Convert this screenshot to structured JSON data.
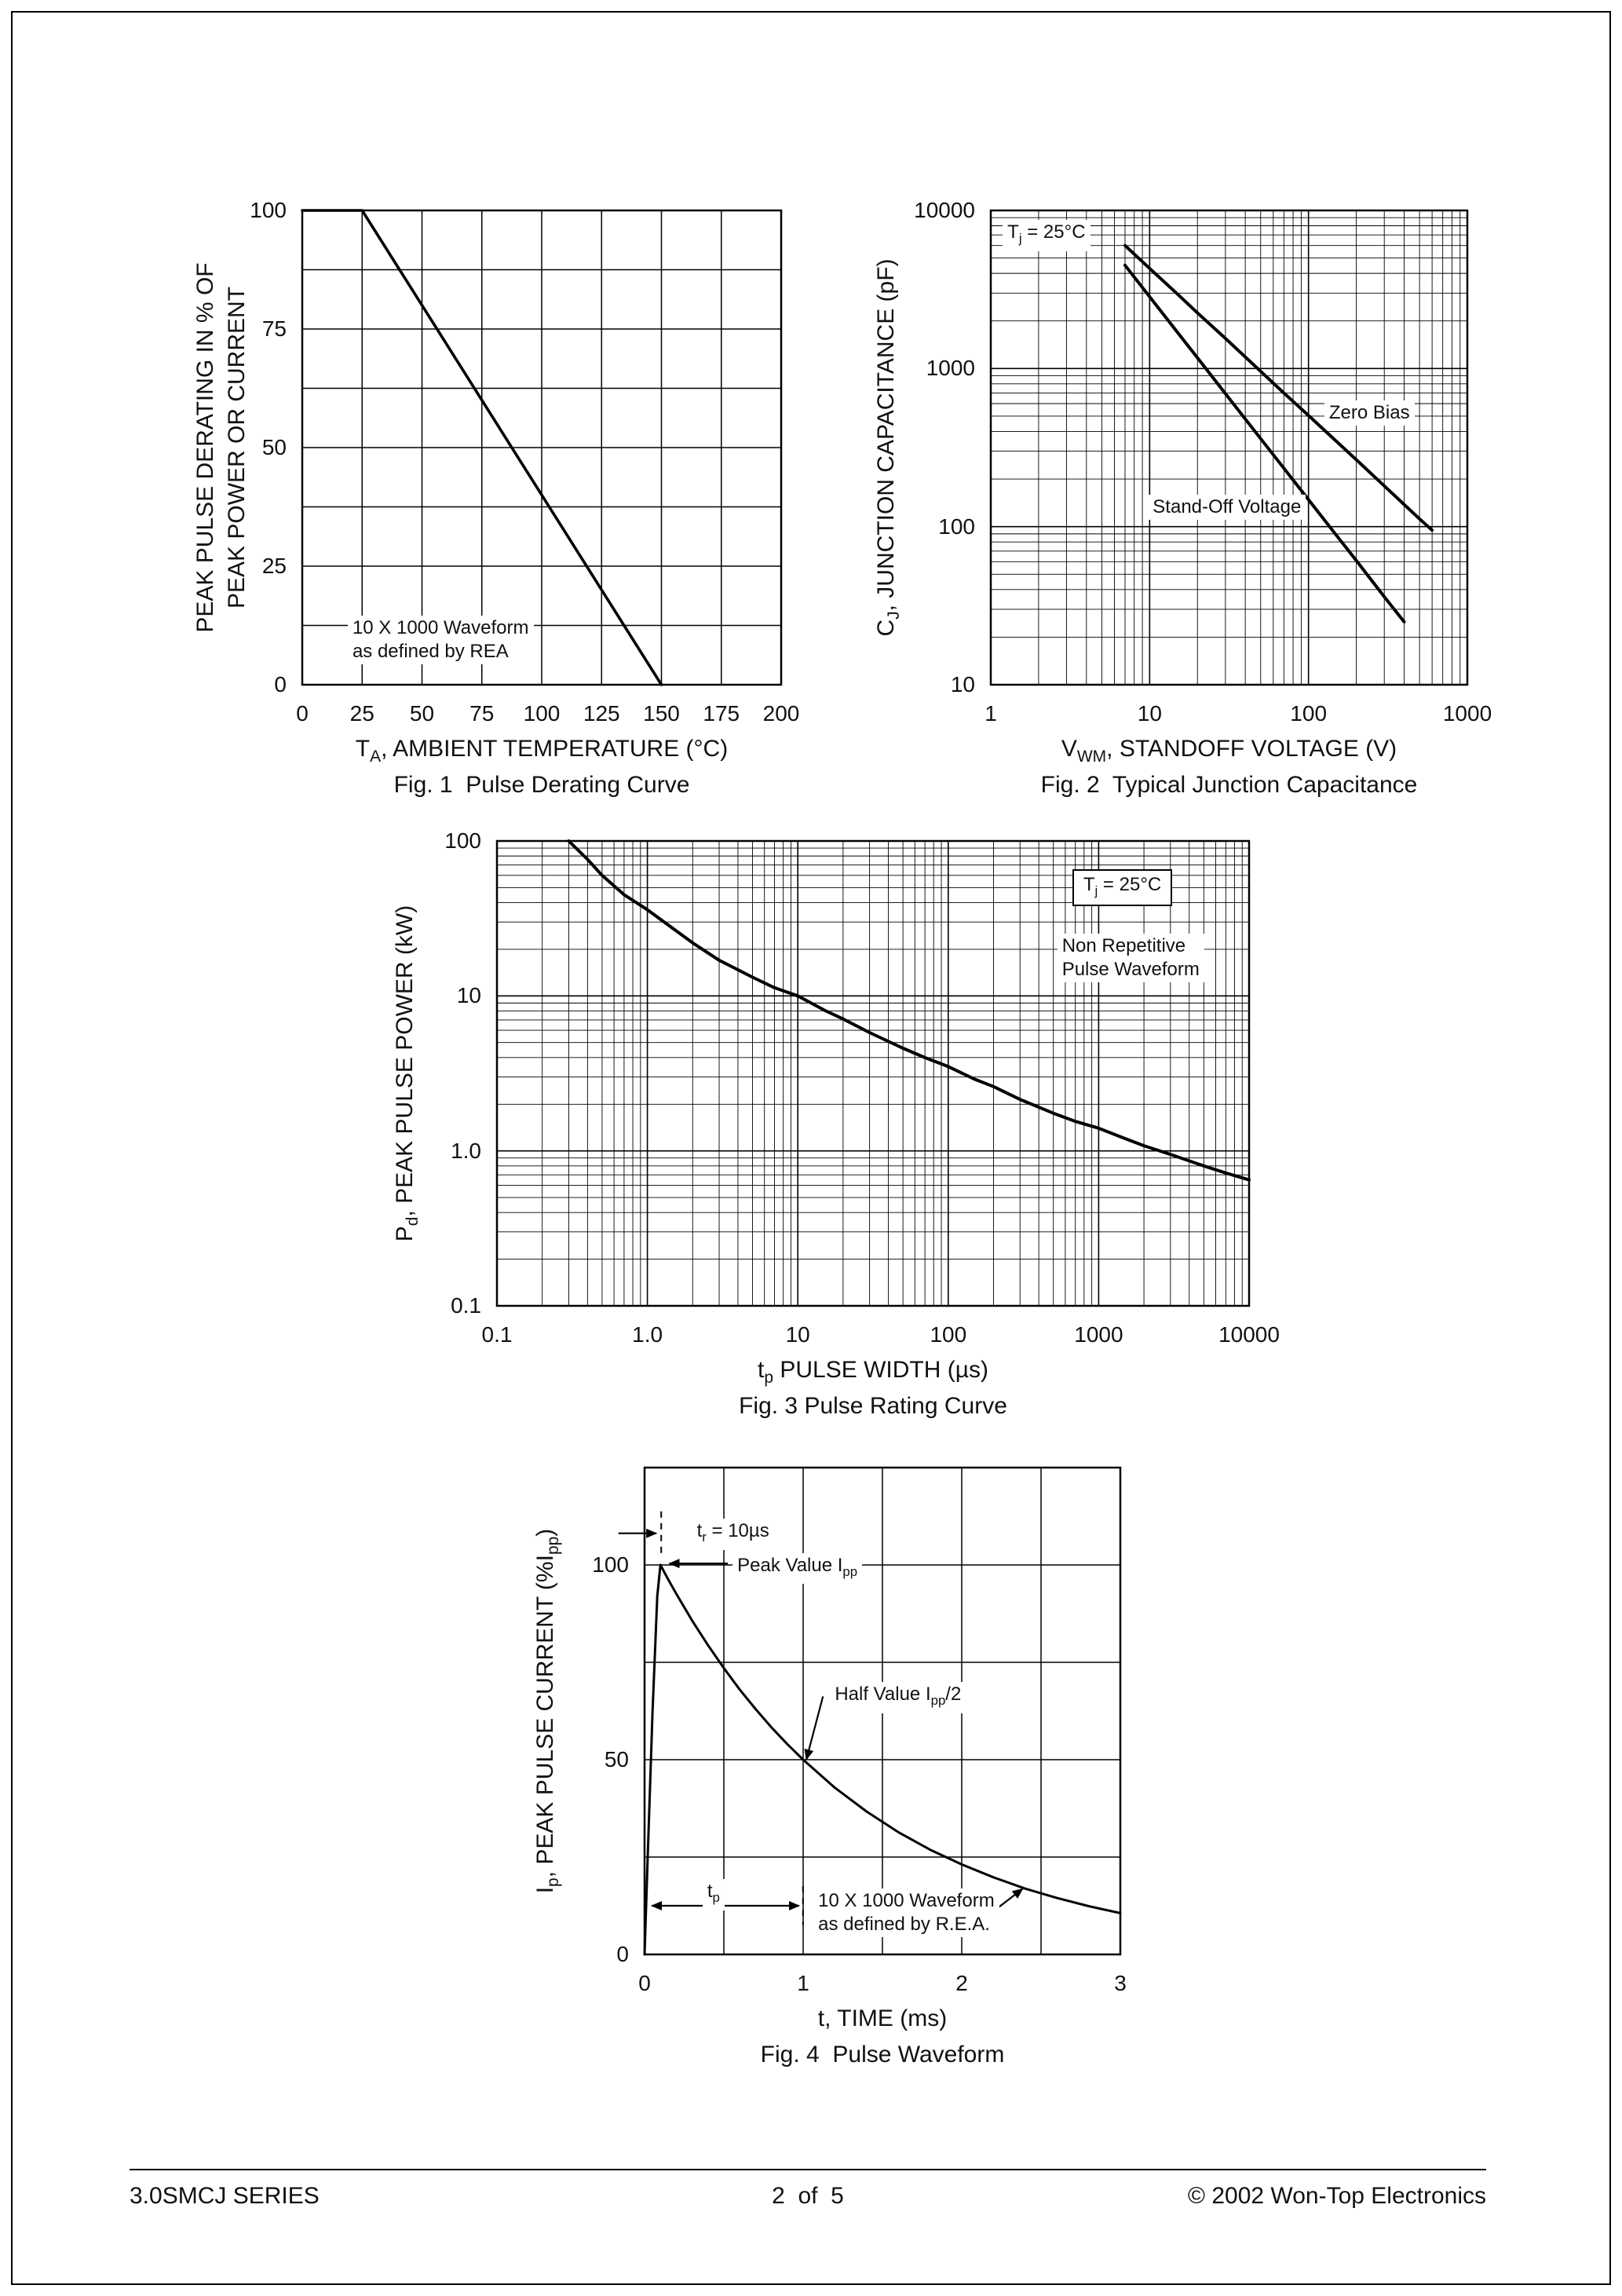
{
  "page": {
    "footer": {
      "left": "3.0SMCJ SERIES",
      "center": "2  of  5",
      "right": "© 2002 Won-Top Electronics"
    }
  },
  "chart_data": [
    {
      "id": "fig1",
      "type": "line",
      "caption": "Fig. 1  Pulse Derating Curve",
      "xscale": "linear",
      "yscale": "linear",
      "xlim": [
        0,
        200
      ],
      "ylim": [
        0,
        100
      ],
      "xgrid_step": 25,
      "ygrid_step": 12.5,
      "grid": true,
      "xlabel": [
        {
          "t": "T"
        },
        {
          "t": "A",
          "sub": true
        },
        {
          "t": ", AMBIENT TEMPERATURE (°C)"
        }
      ],
      "ylabel_lines": [
        [
          {
            "t": "PEAK PULSE DERATING IN % OF"
          }
        ],
        [
          {
            "t": "PEAK POWER OR CURRENT"
          }
        ]
      ],
      "xticks": [
        {
          "v": 0,
          "label": "0"
        },
        {
          "v": 25,
          "label": "25"
        },
        {
          "v": 50,
          "label": "50"
        },
        {
          "v": 75,
          "label": "75"
        },
        {
          "v": 100,
          "label": "100"
        },
        {
          "v": 125,
          "label": "125"
        },
        {
          "v": 150,
          "label": "150"
        },
        {
          "v": 175,
          "label": "175"
        },
        {
          "v": 200,
          "label": "200"
        }
      ],
      "yticks": [
        {
          "v": 0,
          "label": "0"
        },
        {
          "v": 25,
          "label": "25"
        },
        {
          "v": 50,
          "label": "50"
        },
        {
          "v": 75,
          "label": "75"
        },
        {
          "v": 100,
          "label": "100"
        }
      ],
      "series": [
        {
          "name": "derating-line",
          "x": [
            0,
            25,
            150
          ],
          "y": [
            100,
            100,
            0
          ]
        }
      ],
      "annotations": [
        {
          "lines": [
            [
              {
                "t": "10 X 1000 Waveform"
              }
            ],
            [
              {
                "t": "as defined by REA"
              }
            ]
          ],
          "fx": 0.095,
          "fy": 0.855,
          "align": "left",
          "bg": true
        }
      ]
    },
    {
      "id": "fig2",
      "type": "line",
      "caption": "Fig. 2  Typical Junction Capacitance",
      "xscale": "log",
      "yscale": "log",
      "xlim": [
        1,
        1000
      ],
      "ylim": [
        10,
        10000
      ],
      "grid": true,
      "xlabel": [
        {
          "t": "V"
        },
        {
          "t": "WM",
          "sub": true
        },
        {
          "t": ", STANDOFF VOLTAGE (V)"
        }
      ],
      "ylabel_lines": [
        [
          {
            "t": "C"
          },
          {
            "t": "J",
            "sub": true
          },
          {
            "t": ", JUNCTION CAPACITANCE (pF)"
          }
        ]
      ],
      "xticks": [
        {
          "v": 1,
          "label": "1"
        },
        {
          "v": 10,
          "label": "10"
        },
        {
          "v": 100,
          "label": "100"
        },
        {
          "v": 1000,
          "label": "1000"
        }
      ],
      "yticks": [
        {
          "v": 10,
          "label": "10"
        },
        {
          "v": 100,
          "label": "100"
        },
        {
          "v": 1000,
          "label": "1000"
        },
        {
          "v": 10000,
          "label": "10000"
        }
      ],
      "series": [
        {
          "name": "zero-bias",
          "x": [
            7,
            10,
            15,
            20,
            30,
            50,
            70,
            100,
            150,
            200,
            300,
            400,
            500,
            600
          ],
          "y": [
            6000,
            4300,
            2950,
            2250,
            1550,
            960,
            700,
            505,
            346,
            265,
            181,
            138,
            112,
            95
          ]
        },
        {
          "name": "stand-off-voltage",
          "x": [
            7,
            10,
            15,
            20,
            30,
            50,
            70,
            100,
            150,
            200,
            300,
            400
          ],
          "y": [
            4500,
            2845,
            1690,
            1170,
            693,
            360,
            234,
            148,
            88,
            61,
            36,
            25
          ]
        }
      ],
      "annotations": [
        {
          "lines": [
            [
              {
                "t": "T"
              },
              {
                "t": "j",
                "sub": true
              },
              {
                "t": " = 25°C"
              }
            ]
          ],
          "fx": 0.025,
          "fy": 0.02,
          "align": "left",
          "bg": true
        },
        {
          "lines": [
            [
              {
                "t": "Zero Bias"
              }
            ]
          ],
          "fx": 0.7,
          "fy": 0.4,
          "align": "left",
          "bg": true
        },
        {
          "lines": [
            [
              {
                "t": "Stand-Off Voltage"
              }
            ]
          ],
          "fx": 0.33,
          "fy": 0.6,
          "align": "left",
          "bg": true
        }
      ]
    },
    {
      "id": "fig3",
      "type": "line",
      "caption": "Fig. 3 Pulse Rating Curve",
      "xscale": "log",
      "yscale": "log",
      "xlim": [
        0.1,
        10000
      ],
      "ylim": [
        0.1,
        100
      ],
      "grid": true,
      "xlabel": [
        {
          "t": "t"
        },
        {
          "t": "p",
          "sub": true
        },
        {
          "t": " PULSE WIDTH (µs)"
        }
      ],
      "ylabel_lines": [
        [
          {
            "t": "P"
          },
          {
            "t": "d",
            "sub": true
          },
          {
            "t": ", PEAK PULSE POWER (kW)"
          }
        ]
      ],
      "xticks": [
        {
          "v": 0.1,
          "label": "0.1"
        },
        {
          "v": 1,
          "label": "1.0"
        },
        {
          "v": 10,
          "label": "10"
        },
        {
          "v": 100,
          "label": "100"
        },
        {
          "v": 1000,
          "label": "1000"
        },
        {
          "v": 10000,
          "label": "10000"
        }
      ],
      "yticks": [
        {
          "v": 0.1,
          "label": "0.1"
        },
        {
          "v": 1,
          "label": "1.0"
        },
        {
          "v": 10,
          "label": "10"
        },
        {
          "v": 100,
          "label": "100"
        }
      ],
      "series": [
        {
          "name": "pulse-rating",
          "x": [
            0.3,
            0.4,
            0.5,
            0.7,
            1,
            1.5,
            2,
            3,
            5,
            7,
            10,
            15,
            20,
            30,
            50,
            70,
            100,
            150,
            200,
            300,
            500,
            700,
            1000,
            1500,
            2000,
            3000,
            5000,
            7000,
            10000
          ],
          "y": [
            100,
            76,
            60,
            45,
            36,
            27,
            22,
            17,
            13.2,
            11.3,
            10,
            8.1,
            7.1,
            5.8,
            4.6,
            4.0,
            3.5,
            2.9,
            2.6,
            2.15,
            1.75,
            1.55,
            1.4,
            1.2,
            1.08,
            0.95,
            0.8,
            0.72,
            0.65
          ]
        }
      ],
      "annotations": [
        {
          "lines": [
            [
              {
                "t": "T"
              },
              {
                "t": "j",
                "sub": true
              },
              {
                "t": " = 25°C"
              }
            ]
          ],
          "fx": 0.765,
          "fy": 0.06,
          "align": "left",
          "box": true,
          "bg": true
        },
        {
          "lines": [
            [
              {
                "t": "Non Repetitive"
              }
            ],
            [
              {
                "t": "Pulse Waveform"
              }
            ]
          ],
          "fx": 0.745,
          "fy": 0.2,
          "align": "left",
          "bg": true
        }
      ]
    },
    {
      "id": "fig4",
      "type": "line",
      "caption": "Fig. 4  Pulse Waveform",
      "xscale": "linear",
      "yscale": "linear",
      "xlim": [
        0,
        3
      ],
      "ylim": [
        0,
        125
      ],
      "xgrid_step": 0.5,
      "ygrid_step": 25,
      "grid": true,
      "xlabel": [
        {
          "t": "t, TIME (ms)"
        }
      ],
      "ylabel_lines": [
        [
          {
            "t": "I"
          },
          {
            "t": "p",
            "sub": true
          },
          {
            "t": ", PEAK PULSE CURRENT (%I"
          },
          {
            "t": "pp",
            "sub": true
          },
          {
            "t": ")"
          }
        ]
      ],
      "xticks": [
        {
          "v": 0,
          "label": "0"
        },
        {
          "v": 1,
          "label": "1"
        },
        {
          "v": 2,
          "label": "2"
        },
        {
          "v": 3,
          "label": "3"
        }
      ],
      "yticks": [
        {
          "v": 0,
          "label": "0"
        },
        {
          "v": 50,
          "label": "50"
        },
        {
          "v": 100,
          "label": "100"
        }
      ],
      "series": [
        {
          "name": "pulse-waveform",
          "x": [
            0,
            0.02,
            0.05,
            0.08,
            0.1,
            0.15,
            0.2,
            0.3,
            0.4,
            0.5,
            0.6,
            0.7,
            0.8,
            0.9,
            1.0,
            1.2,
            1.4,
            1.6,
            1.8,
            2.0,
            2.2,
            2.4,
            2.6,
            2.8,
            3.0
          ],
          "y": [
            0,
            25,
            62,
            92,
            100,
            96.2,
            92.6,
            85.7,
            79.4,
            73.5,
            68.0,
            63.0,
            58.3,
            54.0,
            50.0,
            42.8,
            36.7,
            31.4,
            26.9,
            23.1,
            19.8,
            16.9,
            14.5,
            12.4,
            10.6
          ]
        }
      ],
      "annotations": [
        {
          "lines": [
            [
              {
                "t": "t"
              },
              {
                "t": "r",
                "sub": true
              },
              {
                "t": " = 10µs"
              }
            ]
          ],
          "fx": 0.1,
          "fy": 0.105,
          "align": "left",
          "bg": true
        },
        {
          "lines": [
            [
              {
                "t": "Peak Value I"
              },
              {
                "t": "pp",
                "sub": true
              }
            ]
          ],
          "fx": 0.185,
          "fy": 0.175,
          "align": "left",
          "bg": true
        },
        {
          "lines": [
            [
              {
                "t": "Half Value I"
              },
              {
                "t": "pp",
                "sub": true
              },
              {
                "t": "/2"
              }
            ]
          ],
          "fx": 0.39,
          "fy": 0.44,
          "align": "left",
          "bg": true
        },
        {
          "lines": [
            [
              {
                "t": "t"
              },
              {
                "t": "p",
                "sub": true
              }
            ]
          ],
          "fx": 0.145,
          "fy": 0.845,
          "align": "center",
          "bg": true
        },
        {
          "lines": [
            [
              {
                "t": "10 X 1000 Waveform"
              }
            ],
            [
              {
                "t": "as defined by R.E.A."
              }
            ]
          ],
          "fx": 0.355,
          "fy": 0.865,
          "align": "left",
          "bg": true
        }
      ],
      "arrows": [
        {
          "x1": -0.055,
          "y1": 0.135,
          "x2": 0.025,
          "y2": 0.135
        },
        {
          "x1": 0.175,
          "y1": 0.197,
          "x2": 0.052,
          "y2": 0.197
        },
        {
          "x1": 0.375,
          "y1": 0.47,
          "x2": 0.34,
          "y2": 0.6
        },
        {
          "x1": 0.015,
          "y1": 0.9,
          "x2": 0.325,
          "y2": 0.9,
          "both": true
        },
        {
          "x1": 0.735,
          "y1": 0.91,
          "x2": 0.795,
          "y2": 0.865
        }
      ],
      "guides": [
        {
          "x1": 0.035,
          "y1": 0.09,
          "x2": 0.035,
          "y2": 0.18,
          "dash": true
        },
        {
          "x1": 0.333,
          "y1": 0.86,
          "x2": 0.333,
          "y2": 0.94,
          "dash": true
        }
      ]
    }
  ]
}
